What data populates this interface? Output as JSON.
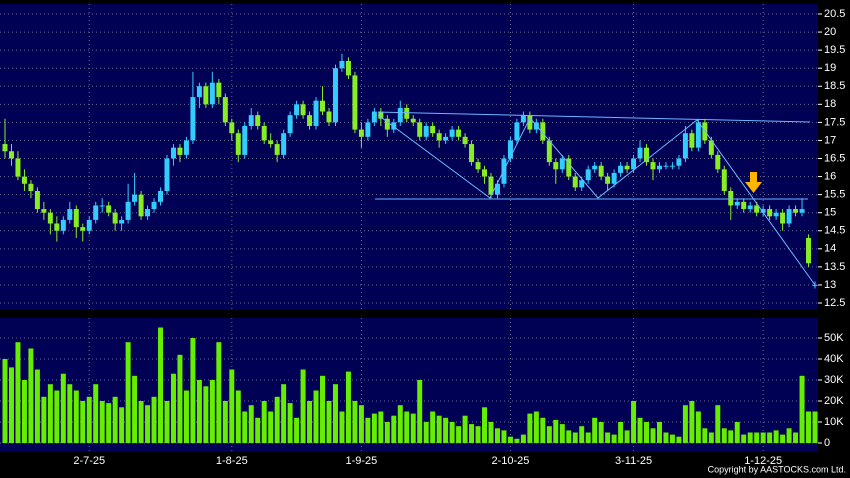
{
  "chart_data": {
    "type": "candlestick",
    "up_color": "#33ccff",
    "down_color": "#88ee22",
    "volume_color": "#66ee00",
    "background": "#000055",
    "grid": true,
    "categories": [
      null,
      null,
      null,
      null,
      null,
      null,
      null,
      null,
      null,
      null,
      null,
      null,
      null,
      "2-7-25",
      null,
      null,
      null,
      null,
      null,
      null,
      null,
      null,
      null,
      null,
      null,
      null,
      null,
      null,
      null,
      null,
      null,
      null,
      null,
      null,
      null,
      "1-8-25",
      null,
      null,
      null,
      null,
      null,
      null,
      null,
      null,
      null,
      null,
      null,
      null,
      null,
      null,
      null,
      null,
      null,
      null,
      null,
      "1-9-25",
      null,
      null,
      null,
      null,
      null,
      null,
      null,
      null,
      null,
      null,
      null,
      null,
      null,
      null,
      null,
      null,
      null,
      null,
      null,
      null,
      null,
      null,
      "2-10-25",
      null,
      null,
      null,
      null,
      null,
      null,
      null,
      null,
      null,
      null,
      null,
      null,
      null,
      null,
      null,
      null,
      null,
      null,
      "3-11-25",
      null,
      null,
      null,
      null,
      null,
      null,
      null,
      null,
      null,
      null,
      null,
      null,
      null,
      null,
      null,
      null,
      null,
      null,
      null,
      "1-12-25",
      null,
      null,
      null,
      null,
      null,
      null,
      null,
      null
    ],
    "ohlc": [
      [
        16.9,
        17.6,
        16.5,
        16.7
      ],
      [
        16.7,
        16.9,
        16.3,
        16.5
      ],
      [
        16.5,
        16.7,
        15.9,
        16.0
      ],
      [
        16.0,
        16.2,
        15.6,
        15.8
      ],
      [
        15.8,
        15.9,
        15.4,
        15.6
      ],
      [
        15.6,
        15.7,
        15.0,
        15.1
      ],
      [
        15.1,
        15.3,
        14.8,
        15.0
      ],
      [
        15.0,
        15.1,
        14.4,
        14.7
      ],
      [
        14.7,
        14.9,
        14.2,
        14.5
      ],
      [
        14.5,
        14.9,
        14.4,
        14.8
      ],
      [
        14.8,
        15.3,
        14.7,
        15.1
      ],
      [
        15.1,
        15.2,
        14.3,
        14.6
      ],
      [
        14.6,
        14.7,
        14.2,
        14.5
      ],
      [
        14.5,
        14.9,
        14.4,
        14.8
      ],
      [
        14.8,
        15.3,
        14.7,
        15.2
      ],
      [
        15.2,
        15.4,
        15.0,
        15.2
      ],
      [
        15.2,
        15.3,
        14.9,
        15.0
      ],
      [
        15.0,
        15.1,
        14.5,
        14.7
      ],
      [
        14.7,
        14.9,
        14.5,
        14.8
      ],
      [
        14.8,
        15.8,
        14.7,
        15.3
      ],
      [
        15.3,
        16.1,
        15.2,
        15.5
      ],
      [
        15.5,
        15.6,
        14.8,
        14.9
      ],
      [
        14.9,
        15.2,
        14.8,
        15.1
      ],
      [
        15.1,
        15.4,
        15.0,
        15.3
      ],
      [
        15.3,
        15.7,
        15.2,
        15.6
      ],
      [
        15.6,
        16.6,
        15.5,
        16.5
      ],
      [
        16.5,
        16.9,
        16.3,
        16.8
      ],
      [
        16.8,
        16.9,
        16.4,
        16.6
      ],
      [
        16.6,
        17.1,
        16.5,
        17.0
      ],
      [
        17.0,
        18.9,
        16.9,
        18.2
      ],
      [
        18.2,
        18.6,
        17.9,
        18.5
      ],
      [
        18.5,
        18.6,
        17.9,
        18.0
      ],
      [
        18.0,
        18.9,
        17.9,
        18.6
      ],
      [
        18.6,
        18.7,
        18.0,
        18.2
      ],
      [
        18.2,
        18.3,
        17.4,
        17.5
      ],
      [
        17.5,
        17.6,
        17.0,
        17.2
      ],
      [
        17.2,
        17.3,
        16.4,
        16.6
      ],
      [
        16.6,
        17.5,
        16.5,
        17.4
      ],
      [
        17.4,
        17.9,
        17.3,
        17.7
      ],
      [
        17.7,
        17.8,
        17.3,
        17.4
      ],
      [
        17.4,
        17.5,
        16.9,
        17.0
      ],
      [
        17.0,
        17.2,
        16.8,
        16.9
      ],
      [
        16.9,
        17.0,
        16.4,
        16.6
      ],
      [
        16.6,
        17.3,
        16.5,
        17.2
      ],
      [
        17.2,
        17.8,
        17.1,
        17.7
      ],
      [
        17.7,
        18.1,
        17.6,
        18.0
      ],
      [
        18.0,
        18.1,
        17.6,
        17.7
      ],
      [
        17.7,
        17.8,
        17.3,
        17.4
      ],
      [
        17.4,
        18.2,
        17.3,
        18.1
      ],
      [
        18.1,
        18.5,
        17.7,
        17.8
      ],
      [
        17.8,
        17.9,
        17.4,
        17.5
      ],
      [
        17.5,
        19.1,
        17.4,
        19.0
      ],
      [
        19.0,
        19.4,
        18.9,
        19.2
      ],
      [
        19.2,
        19.3,
        18.7,
        18.8
      ],
      [
        18.8,
        18.9,
        17.2,
        17.3
      ],
      [
        17.3,
        17.5,
        16.8,
        17.1
      ],
      [
        17.1,
        17.6,
        17.0,
        17.5
      ],
      [
        17.5,
        17.9,
        17.4,
        17.8
      ],
      [
        17.8,
        17.9,
        17.4,
        17.6
      ],
      [
        17.6,
        17.7,
        17.1,
        17.3
      ],
      [
        17.3,
        17.6,
        17.2,
        17.5
      ],
      [
        17.5,
        18.1,
        17.4,
        17.9
      ],
      [
        17.9,
        18.0,
        17.5,
        17.6
      ],
      [
        17.6,
        17.7,
        17.4,
        17.5
      ],
      [
        17.5,
        17.6,
        17.0,
        17.1
      ],
      [
        17.1,
        17.5,
        17.0,
        17.4
      ],
      [
        17.4,
        17.5,
        17.1,
        17.2
      ],
      [
        17.2,
        17.3,
        16.8,
        17.0
      ],
      [
        17.0,
        17.2,
        16.9,
        17.1
      ],
      [
        17.1,
        17.4,
        17.0,
        17.3
      ],
      [
        17.3,
        17.4,
        17.0,
        17.1
      ],
      [
        17.1,
        17.2,
        16.8,
        16.9
      ],
      [
        16.9,
        17.0,
        16.3,
        16.4
      ],
      [
        16.4,
        16.5,
        16.1,
        16.2
      ],
      [
        16.2,
        16.3,
        15.8,
        16.0
      ],
      [
        16.0,
        16.1,
        15.4,
        15.5
      ],
      [
        15.5,
        15.9,
        15.4,
        15.8
      ],
      [
        15.8,
        16.6,
        15.7,
        16.5
      ],
      [
        16.5,
        17.1,
        16.4,
        17.0
      ],
      [
        17.0,
        17.6,
        16.9,
        17.5
      ],
      [
        17.5,
        17.8,
        17.4,
        17.7
      ],
      [
        17.7,
        17.8,
        17.2,
        17.3
      ],
      [
        17.3,
        17.6,
        17.2,
        17.5
      ],
      [
        17.5,
        17.6,
        16.9,
        17.0
      ],
      [
        17.0,
        17.1,
        16.3,
        16.4
      ],
      [
        16.4,
        16.5,
        15.8,
        16.2
      ],
      [
        16.2,
        16.6,
        16.1,
        16.5
      ],
      [
        16.5,
        16.6,
        15.9,
        16.0
      ],
      [
        16.0,
        16.1,
        15.6,
        15.7
      ],
      [
        15.7,
        16.0,
        15.6,
        15.9
      ],
      [
        15.9,
        16.3,
        15.8,
        16.2
      ],
      [
        16.2,
        16.4,
        16.1,
        16.3
      ],
      [
        16.3,
        16.4,
        15.9,
        16.0
      ],
      [
        16.0,
        16.1,
        15.6,
        15.8
      ],
      [
        15.8,
        16.2,
        15.7,
        16.1
      ],
      [
        16.1,
        16.4,
        16.0,
        16.3
      ],
      [
        16.3,
        16.4,
        16.1,
        16.2
      ],
      [
        16.2,
        16.6,
        16.1,
        16.5
      ],
      [
        16.5,
        17.0,
        16.4,
        16.8
      ],
      [
        16.8,
        16.9,
        16.3,
        16.4
      ],
      [
        16.4,
        16.5,
        15.9,
        16.2
      ],
      [
        16.2,
        16.4,
        16.1,
        16.3
      ],
      [
        16.3,
        16.4,
        16.2,
        16.3
      ],
      [
        16.3,
        16.4,
        16.2,
        16.3
      ],
      [
        16.3,
        16.6,
        16.2,
        16.5
      ],
      [
        16.5,
        17.4,
        16.4,
        17.2
      ],
      [
        17.2,
        17.3,
        16.7,
        16.8
      ],
      [
        16.8,
        17.6,
        16.7,
        17.5
      ],
      [
        17.5,
        17.6,
        16.9,
        17.0
      ],
      [
        17.0,
        17.1,
        16.5,
        16.6
      ],
      [
        16.6,
        16.7,
        16.1,
        16.2
      ],
      [
        16.2,
        16.3,
        15.5,
        15.6
      ],
      [
        15.6,
        15.7,
        14.8,
        15.2
      ],
      [
        15.2,
        15.4,
        15.1,
        15.3
      ],
      [
        15.3,
        15.4,
        15.0,
        15.1
      ],
      [
        15.1,
        15.3,
        15.0,
        15.2
      ],
      [
        15.2,
        15.3,
        14.9,
        15.0
      ],
      [
        15.0,
        15.2,
        14.9,
        15.1
      ],
      [
        15.1,
        15.2,
        14.8,
        14.9
      ],
      [
        14.9,
        15.1,
        14.8,
        15.0
      ],
      [
        15.0,
        15.1,
        14.5,
        14.7
      ],
      [
        14.7,
        15.2,
        14.6,
        15.1
      ],
      [
        15.1,
        15.2,
        14.9,
        15.0
      ],
      [
        15.0,
        15.4,
        14.9,
        15.1
      ],
      [
        14.3,
        14.4,
        13.5,
        13.6
      ],
      [
        13.0,
        13.1,
        12.9,
        13.0
      ]
    ],
    "ylim": [
      12.5,
      20.5
    ],
    "yticks": [
      12.5,
      13,
      13.5,
      14,
      14.5,
      15,
      15.5,
      16,
      16.5,
      17,
      17.5,
      18,
      18.5,
      19,
      19.5,
      20,
      20.5
    ],
    "volume": [
      40000,
      36000,
      48000,
      30000,
      45000,
      35000,
      22000,
      28000,
      25000,
      33000,
      28000,
      25000,
      20000,
      22000,
      28000,
      20000,
      19000,
      22000,
      17000,
      48000,
      32000,
      20000,
      18000,
      22000,
      55000,
      20000,
      33000,
      42000,
      25000,
      50000,
      30000,
      27000,
      30000,
      48000,
      20000,
      35000,
      25000,
      15000,
      18000,
      12000,
      20000,
      15000,
      22000,
      28000,
      19000,
      12000,
      35000,
      20000,
      25000,
      32000,
      20000,
      28000,
      15000,
      34000,
      20000,
      18000,
      12000,
      14000,
      15000,
      10000,
      13000,
      18000,
      15000,
      14000,
      30000,
      10000,
      15000,
      13000,
      12000,
      10000,
      8000,
      13000,
      9000,
      8000,
      17000,
      10000,
      7000,
      6000,
      3000,
      2000,
      4000,
      14000,
      15000,
      12000,
      8000,
      11000,
      9000,
      6000,
      5000,
      8000,
      5000,
      12000,
      10000,
      5000,
      4000,
      10000,
      6000,
      20000,
      12000,
      10000,
      7000,
      10000,
      5000,
      4000,
      3000,
      18000,
      20000,
      15000,
      7000,
      5000,
      18000,
      7000,
      6000,
      10000,
      4000,
      5000,
      5000,
      5000,
      5000,
      6000,
      4000,
      7000,
      5000,
      32000,
      15000,
      15000
    ],
    "vlim": [
      0,
      50000
    ],
    "vticks": [
      {
        "value": 0,
        "label": "0"
      },
      {
        "value": 10000,
        "label": "10K"
      },
      {
        "value": 20000,
        "label": "20K"
      },
      {
        "value": 30000,
        "label": "30K"
      },
      {
        "value": 40000,
        "label": "40K"
      },
      {
        "value": 50000,
        "label": "50K"
      }
    ],
    "footer": "Copyright by AASTOCKS.com Ltd."
  }
}
